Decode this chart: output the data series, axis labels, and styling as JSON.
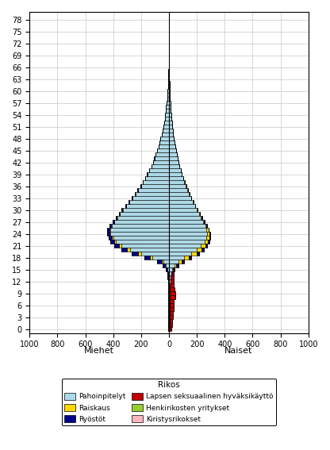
{
  "title": "",
  "xlabel_left": "Miehet",
  "xlabel_right": "Naiset",
  "legend_title": "Rikos",
  "xlim": 1000,
  "ages": [
    0,
    1,
    2,
    3,
    4,
    5,
    6,
    7,
    8,
    9,
    10,
    11,
    12,
    13,
    14,
    15,
    16,
    17,
    18,
    19,
    20,
    21,
    22,
    23,
    24,
    25,
    26,
    27,
    28,
    29,
    30,
    31,
    32,
    33,
    34,
    35,
    36,
    37,
    38,
    39,
    40,
    41,
    42,
    43,
    44,
    45,
    46,
    47,
    48,
    49,
    50,
    51,
    52,
    53,
    54,
    55,
    56,
    57,
    58,
    59,
    60,
    61,
    62,
    63,
    64,
    65,
    66,
    67,
    68,
    69,
    70,
    71,
    72,
    73,
    74,
    75,
    76,
    77,
    78
  ],
  "male_pahoinpitelyt": [
    5,
    5,
    5,
    5,
    5,
    5,
    5,
    5,
    5,
    5,
    5,
    5,
    5,
    5,
    5,
    10,
    20,
    40,
    120,
    200,
    280,
    340,
    380,
    400,
    420,
    420,
    410,
    390,
    370,
    350,
    330,
    305,
    285,
    260,
    240,
    220,
    200,
    185,
    170,
    155,
    140,
    125,
    115,
    105,
    95,
    85,
    75,
    68,
    60,
    53,
    47,
    41,
    36,
    31,
    27,
    23,
    20,
    17,
    14,
    11,
    9,
    7,
    6,
    5,
    4,
    3,
    2,
    2,
    1,
    1,
    1,
    1,
    1,
    0,
    0,
    0,
    0,
    0,
    0
  ],
  "male_raiskaus": [
    0,
    0,
    0,
    0,
    0,
    0,
    0,
    0,
    0,
    0,
    0,
    0,
    0,
    0,
    0,
    3,
    6,
    12,
    18,
    22,
    20,
    18,
    14,
    10,
    8,
    7,
    6,
    5,
    5,
    4,
    3,
    3,
    2,
    2,
    2,
    2,
    1,
    1,
    1,
    1,
    1,
    1,
    0,
    0,
    0,
    0,
    0,
    0,
    0,
    0,
    0,
    0,
    0,
    0,
    0,
    0,
    0,
    0,
    0,
    0,
    0,
    0,
    0,
    0,
    0,
    0,
    0,
    0,
    0,
    0,
    0,
    0,
    0,
    0,
    0,
    0,
    0,
    0,
    0
  ],
  "male_ryostot": [
    0,
    0,
    0,
    0,
    0,
    0,
    0,
    0,
    0,
    0,
    0,
    0,
    2,
    4,
    6,
    12,
    22,
    32,
    40,
    45,
    40,
    35,
    28,
    22,
    18,
    15,
    12,
    10,
    8,
    7,
    6,
    5,
    4,
    4,
    3,
    3,
    2,
    2,
    2,
    1,
    1,
    1,
    1,
    1,
    0,
    0,
    0,
    0,
    0,
    0,
    0,
    0,
    0,
    0,
    0,
    0,
    0,
    0,
    0,
    0,
    0,
    0,
    0,
    0,
    0,
    0,
    0,
    0,
    0,
    0,
    0,
    0,
    0,
    0,
    0,
    0,
    0,
    0,
    0
  ],
  "male_lapsen_seksuaalinen": [
    0,
    0,
    0,
    0,
    0,
    0,
    0,
    0,
    0,
    0,
    0,
    0,
    0,
    0,
    0,
    0,
    0,
    0,
    0,
    0,
    0,
    0,
    0,
    0,
    0,
    0,
    0,
    0,
    0,
    0,
    0,
    0,
    0,
    0,
    0,
    0,
    0,
    0,
    0,
    0,
    0,
    0,
    0,
    0,
    0,
    0,
    0,
    0,
    0,
    0,
    0,
    0,
    0,
    0,
    0,
    0,
    0,
    0,
    0,
    0,
    0,
    0,
    0,
    0,
    0,
    0,
    0,
    0,
    0,
    0,
    0,
    0,
    0,
    0,
    0,
    0,
    0,
    0,
    0
  ],
  "male_henkirikosten": [
    0,
    0,
    0,
    0,
    0,
    0,
    0,
    0,
    0,
    0,
    0,
    0,
    0,
    0,
    0,
    0,
    0,
    0,
    0,
    0,
    0,
    0,
    0,
    0,
    0,
    0,
    0,
    0,
    0,
    0,
    0,
    0,
    0,
    0,
    0,
    0,
    0,
    0,
    0,
    0,
    0,
    0,
    0,
    0,
    0,
    0,
    0,
    0,
    0,
    0,
    0,
    0,
    0,
    0,
    0,
    0,
    0,
    0,
    0,
    0,
    0,
    0,
    0,
    0,
    0,
    0,
    0,
    0,
    0,
    0,
    0,
    0,
    0,
    0,
    0,
    0,
    0,
    0,
    0
  ],
  "male_kiristys": [
    0,
    0,
    0,
    0,
    0,
    0,
    0,
    0,
    0,
    0,
    0,
    0,
    0,
    0,
    0,
    0,
    0,
    0,
    0,
    0,
    0,
    0,
    0,
    0,
    0,
    0,
    0,
    0,
    0,
    0,
    0,
    0,
    0,
    0,
    0,
    0,
    0,
    0,
    0,
    0,
    0,
    0,
    0,
    0,
    0,
    0,
    0,
    0,
    0,
    0,
    0,
    0,
    0,
    0,
    0,
    0,
    0,
    0,
    0,
    0,
    0,
    0,
    0,
    0,
    0,
    0,
    0,
    0,
    0,
    0,
    0,
    0,
    0,
    0,
    0,
    0,
    0,
    0,
    0
  ],
  "female_pahoinpitelyt": [
    5,
    5,
    5,
    5,
    5,
    5,
    5,
    5,
    8,
    8,
    8,
    8,
    10,
    12,
    15,
    22,
    40,
    70,
    110,
    160,
    200,
    230,
    255,
    270,
    275,
    270,
    260,
    245,
    230,
    215,
    200,
    185,
    172,
    158,
    145,
    133,
    122,
    111,
    101,
    92,
    83,
    75,
    68,
    61,
    55,
    49,
    44,
    39,
    34,
    30,
    26,
    23,
    20,
    17,
    15,
    12,
    11,
    9,
    7,
    6,
    5,
    4,
    3,
    2,
    2,
    1,
    1,
    1,
    1,
    0,
    0,
    0,
    0,
    0,
    0,
    0,
    0,
    0,
    0
  ],
  "female_raiskaus": [
    0,
    0,
    0,
    0,
    0,
    0,
    0,
    0,
    0,
    0,
    0,
    0,
    0,
    0,
    2,
    5,
    12,
    22,
    30,
    38,
    35,
    30,
    25,
    20,
    15,
    12,
    10,
    8,
    6,
    5,
    4,
    3,
    3,
    2,
    2,
    2,
    1,
    1,
    1,
    1,
    0,
    0,
    0,
    0,
    0,
    0,
    0,
    0,
    0,
    0,
    0,
    0,
    0,
    0,
    0,
    0,
    0,
    0,
    0,
    0,
    0,
    0,
    0,
    0,
    0,
    0,
    0,
    0,
    0,
    0,
    0,
    0,
    0,
    0,
    0,
    0,
    0,
    0,
    0
  ],
  "female_ryostot": [
    0,
    0,
    0,
    0,
    0,
    0,
    0,
    0,
    0,
    0,
    0,
    0,
    1,
    2,
    3,
    5,
    8,
    12,
    15,
    18,
    15,
    12,
    10,
    8,
    6,
    5,
    4,
    3,
    3,
    2,
    2,
    2,
    1,
    1,
    1,
    1,
    1,
    0,
    0,
    0,
    0,
    0,
    0,
    0,
    0,
    0,
    0,
    0,
    0,
    0,
    0,
    0,
    0,
    0,
    0,
    0,
    0,
    0,
    0,
    0,
    0,
    0,
    0,
    0,
    0,
    0,
    0,
    0,
    0,
    0,
    0,
    0,
    0,
    0,
    0,
    0,
    0,
    0,
    0
  ],
  "female_lapsen_seksuaalinen": [
    10,
    15,
    20,
    22,
    25,
    28,
    30,
    32,
    35,
    35,
    32,
    28,
    22,
    18,
    14,
    10,
    8,
    5,
    3,
    2,
    1,
    1,
    0,
    0,
    0,
    0,
    0,
    0,
    0,
    0,
    0,
    0,
    0,
    0,
    0,
    0,
    0,
    0,
    0,
    0,
    0,
    0,
    0,
    0,
    0,
    0,
    0,
    0,
    0,
    0,
    0,
    0,
    0,
    0,
    0,
    0,
    0,
    0,
    0,
    0,
    0,
    0,
    0,
    0,
    0,
    0,
    0,
    0,
    0,
    0,
    0,
    0,
    0,
    0,
    0,
    0,
    0,
    0,
    0
  ],
  "female_henkirikosten": [
    0,
    0,
    0,
    0,
    0,
    0,
    0,
    0,
    0,
    0,
    0,
    0,
    0,
    0,
    0,
    0,
    0,
    0,
    0,
    0,
    0,
    0,
    0,
    0,
    0,
    0,
    0,
    0,
    0,
    0,
    0,
    0,
    0,
    0,
    0,
    0,
    0,
    0,
    0,
    0,
    0,
    0,
    0,
    0,
    0,
    0,
    0,
    0,
    0,
    0,
    0,
    0,
    0,
    0,
    0,
    0,
    0,
    0,
    0,
    0,
    0,
    0,
    0,
    0,
    0,
    0,
    0,
    0,
    0,
    0,
    0,
    0,
    0,
    0,
    0,
    0,
    0,
    0,
    0
  ],
  "female_kiristys": [
    0,
    0,
    0,
    0,
    0,
    0,
    0,
    0,
    0,
    0,
    0,
    0,
    0,
    0,
    0,
    0,
    0,
    0,
    0,
    0,
    0,
    0,
    0,
    0,
    0,
    0,
    0,
    0,
    0,
    0,
    0,
    0,
    0,
    0,
    0,
    0,
    0,
    0,
    0,
    0,
    0,
    0,
    0,
    0,
    0,
    0,
    0,
    0,
    0,
    0,
    0,
    0,
    0,
    0,
    0,
    0,
    0,
    0,
    0,
    0,
    0,
    0,
    0,
    0,
    0,
    0,
    0,
    0,
    0,
    0,
    0,
    0,
    0,
    0,
    0,
    0,
    0,
    0,
    0
  ],
  "colors": {
    "pahoinpitelyt": "#add8e6",
    "raiskaus": "#ffd700",
    "ryostot": "#00008b",
    "lapsen_seksuaalinen": "#c00000",
    "henkirikosten": "#9acd32",
    "kiristys": "#ffb6c1"
  },
  "yticks": [
    0,
    3,
    6,
    9,
    12,
    15,
    18,
    21,
    24,
    27,
    30,
    33,
    36,
    39,
    42,
    45,
    48,
    51,
    54,
    57,
    60,
    63,
    66,
    69,
    72,
    75,
    78
  ],
  "xticks": [
    -1000,
    -800,
    -600,
    -400,
    -200,
    0,
    200,
    400,
    600,
    800,
    1000
  ],
  "xticklabels": [
    "1000",
    "800",
    "600",
    "400",
    "200",
    "0",
    "200",
    "400",
    "600",
    "800",
    "1000"
  ],
  "legend_entries": [
    "Pahoinpitelyt",
    "Raiskaus",
    "Ryöstöt",
    "Lapsen seksuaalinen hyväksikäyttö",
    "Henkirikosten yritykset",
    "Kiristysrikokset"
  ],
  "background_color": "#ffffff",
  "grid_color": "#c8c8c8"
}
